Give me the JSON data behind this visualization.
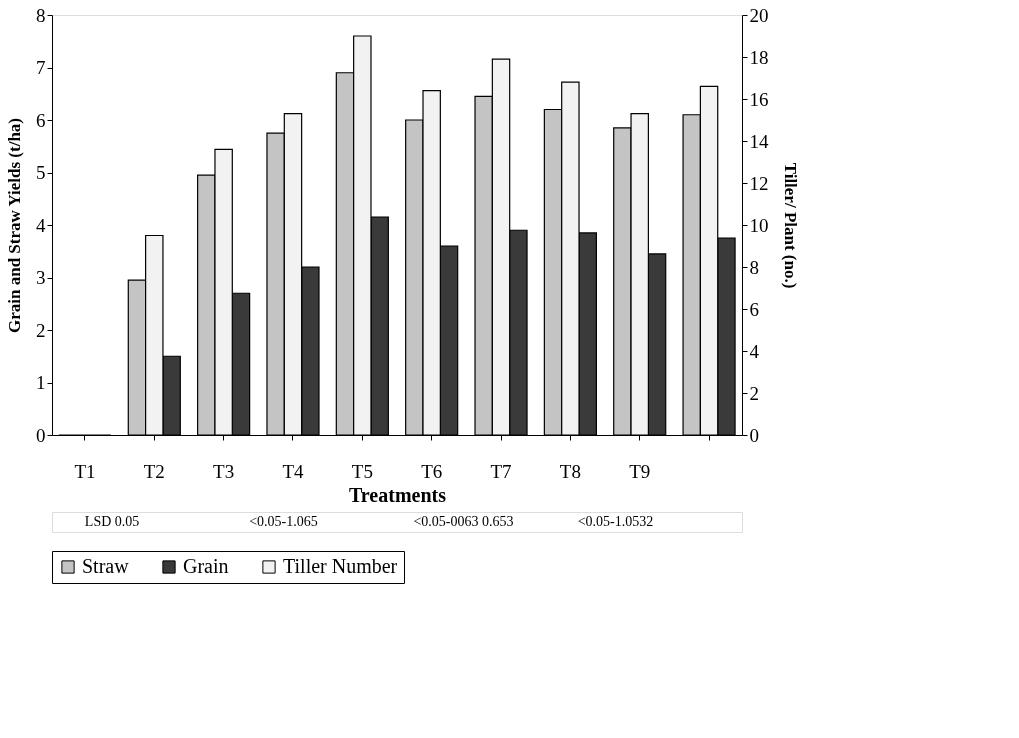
{
  "chart_data": {
    "type": "bar",
    "xlabel": "Treatments",
    "ylabel": "Grain and Straw Yields (t/ha)",
    "y2label": "Tiller/ Plant (no.)",
    "categories": [
      "T1",
      "T2",
      "T3",
      "T4",
      "T5",
      "T6",
      "T7",
      "T8",
      "T9",
      null
    ],
    "series": [
      {
        "name": "Straw",
        "color": "#c4c4c4",
        "values": [
          0,
          2.95,
          4.95,
          5.75,
          6.9,
          6.0,
          6.45,
          6.2,
          5.85,
          6.1
        ]
      },
      {
        "name": "Grain",
        "color": "#3a3a3a",
        "values": [
          0,
          1.5,
          2.7,
          3.2,
          4.15,
          3.6,
          3.9,
          3.85,
          3.45,
          3.75
        ]
      },
      {
        "name": "Tiller Number",
        "color": "#f2f2f2",
        "axis": "y2",
        "values": [
          0,
          9.5,
          13.6,
          15.3,
          19.0,
          16.4,
          17.9,
          16.8,
          15.3,
          16.6
        ]
      }
    ],
    "ylim": [
      0,
      8
    ],
    "yticks": [
      0,
      1,
      2,
      3,
      4,
      5,
      6,
      7,
      8
    ],
    "y2lim": [
      0,
      20
    ],
    "y2ticks": [
      0,
      2,
      4,
      6,
      8,
      10,
      12,
      14,
      16,
      18,
      20
    ],
    "grid": false,
    "legend": "bottom",
    "annotations": [
      "LSD 0.05",
      "<0.05-1.065",
      "<0.05-0063 0.653",
      "<0.05-1.0532"
    ]
  }
}
